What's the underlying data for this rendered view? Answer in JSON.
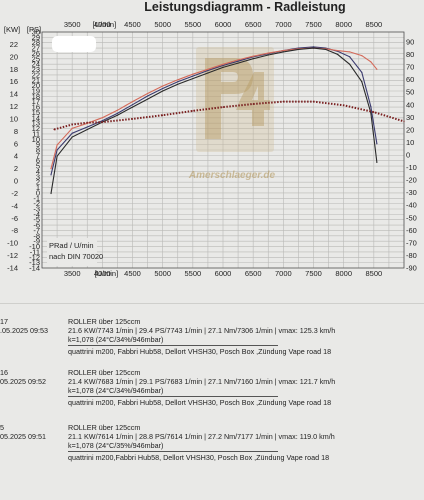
{
  "chart_data": {
    "type": "line",
    "title": "Leistungsdiagramm - Radleistung",
    "xlabel": "[U/min]",
    "ylabel_left_kw": "[KW]",
    "ylabel_left_ps": "[PS]",
    "xlim": [
      3000,
      9000
    ],
    "kw_lim": [
      -14,
      24
    ],
    "ps_lim": [
      -14,
      30
    ],
    "x_ticks_top": [
      3500,
      4000,
      4500,
      5000,
      5500,
      6000,
      6500,
      7000,
      7500,
      8000,
      8500
    ],
    "x_ticks_bottom": [
      3500,
      4000,
      4500,
      5000,
      5500,
      6000,
      6500,
      7000,
      7500,
      8000,
      8500
    ],
    "kw_ticks": [
      22,
      20,
      18,
      16,
      14,
      12,
      10,
      8,
      6,
      4,
      2,
      0,
      -2,
      -4,
      -6,
      -8,
      -10,
      -12,
      -14
    ],
    "ps_ticks": [
      30,
      29,
      28,
      27,
      26,
      25,
      24,
      23,
      22,
      21,
      20,
      19,
      18,
      17,
      16,
      15,
      14,
      13,
      12,
      11,
      10,
      9,
      8,
      7,
      6,
      5,
      4,
      3,
      2,
      1,
      0,
      -1,
      -2,
      -3,
      -4,
      -5,
      -6,
      -7,
      -8,
      -9,
      -10,
      -11,
      -12,
      -13,
      -14
    ],
    "right_ticks": [
      "90",
      "80",
      "70",
      "60",
      "50",
      "40",
      "30",
      "20",
      "10",
      "0",
      "-10",
      "-20",
      "-30",
      "-40",
      "-50",
      "-60",
      "-70",
      "-80",
      "-90"
    ],
    "annotation_lines": [
      "PRad / U/min",
      "nach DIN 70020"
    ],
    "series": [
      {
        "color": "#3a3a6e",
        "x": [
          3150,
          3250,
          3500,
          3750,
          4000,
          4250,
          4500,
          4750,
          5000,
          5250,
          5500,
          5750,
          6000,
          6250,
          6500,
          6750,
          7000,
          7250,
          7500,
          7700,
          7900,
          8100,
          8300,
          8450,
          8550
        ],
        "kw": [
          1,
          5,
          7.7,
          8.7,
          9.7,
          10.9,
          12.3,
          13.7,
          14.9,
          16,
          16.9,
          17.8,
          18.6,
          19.3,
          20,
          20.5,
          21,
          21.4,
          21.6,
          21.4,
          20.9,
          20,
          17.5,
          12,
          6
        ]
      },
      {
        "color": "#d46a5a",
        "x": [
          3150,
          3250,
          3500,
          3750,
          4000,
          4250,
          4500,
          4750,
          5000,
          5250,
          5500,
          5750,
          6000,
          6250,
          6500,
          6750,
          7000,
          7250,
          7500,
          7700,
          7900,
          8100,
          8300,
          8450,
          8550
        ],
        "kw": [
          2,
          5.8,
          8.5,
          9.3,
          10.2,
          11.4,
          12.8,
          14.1,
          15.3,
          16.3,
          17.2,
          18,
          18.8,
          19.5,
          20.1,
          20.6,
          21,
          21.3,
          21.4,
          21.3,
          21,
          20.8,
          20.2,
          19.2,
          18
        ]
      },
      {
        "color": "#2a2a2a",
        "x": [
          3150,
          3250,
          3500,
          3750,
          4000,
          4250,
          4500,
          4750,
          5000,
          5250,
          5500,
          5750,
          6000,
          6250,
          6500,
          6750,
          7000,
          7250,
          7500,
          7700,
          7900,
          8100,
          8300,
          8450,
          8550
        ],
        "kw": [
          -2,
          4,
          7.1,
          8.3,
          9.5,
          10.6,
          11.9,
          13.2,
          14.5,
          15.6,
          16.5,
          17.4,
          18.3,
          19,
          19.7,
          20.3,
          20.8,
          21.2,
          21.4,
          21.2,
          20.4,
          18.8,
          16,
          11,
          3
        ]
      },
      {
        "color": "#7a2020",
        "style": "dotted",
        "x": [
          3200,
          3500,
          3750,
          4000,
          4500,
          5000,
          5500,
          6000,
          6500,
          7000,
          7500,
          8000,
          8500,
          9000
        ],
        "kw": [
          8.3,
          9.1,
          9.4,
          9.5,
          10,
          10.6,
          11.3,
          11.9,
          12.4,
          12.8,
          12.8,
          12.2,
          11.1,
          9.6
        ]
      }
    ]
  },
  "runs": [
    {
      "index": "17",
      "date": ".05.2025  09:53",
      "vehicle": "ROLLER über 125ccm",
      "values": "21.6 KW/7743 1/min  |  29.4 PS/7743 1/min  |  27.1 Nm/7306 1/min  |  vmax: 125.3 km/h",
      "correction": "k=1,078 (24°C/34%/946mbar)",
      "config": "quattrini m200, Fabbri Hub58, Dellort VHSH30, Posch Box ,Zündung Vape road 18"
    },
    {
      "index": "16",
      "date": "05.2025  09:52",
      "vehicle": "ROLLER über 125ccm",
      "values": "21.4 KW/7683 1/min  |  29.1 PS/7683 1/min  |  27.1 Nm/7160 1/min  |  vmax: 121.7 km/h",
      "correction": "k=1,078 (24°C/34%/946mbar)",
      "config": "quattrini m200, Fabbri Hub58, Dellort VHSH30, Posch Box ,Zündung Vape road 18"
    },
    {
      "index": "5",
      "date": "05.2025  09:51",
      "vehicle": "ROLLER über 125ccm",
      "values": "21.1 KW/7614 1/min  |  28.8 PS/7614 1/min  |  27.2 Nm/7177 1/min  |  vmax: 119.0 km/h",
      "correction": "k=1,078 (24°C/35%/946mbar)",
      "config": "quattrini m200,Fabbri Hub58, Dellort VHSH30, Posch Box ,Zündung Vape road 18"
    }
  ],
  "watermark": {
    "logo_text": "P4",
    "url_text": "Amerschlaeger.de"
  }
}
